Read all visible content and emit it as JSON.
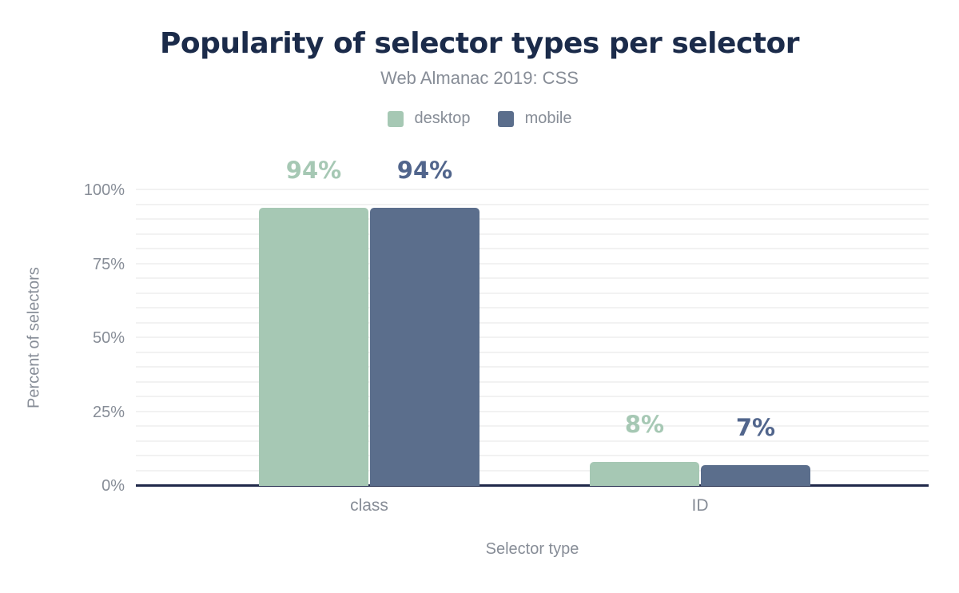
{
  "chart_data": {
    "type": "bar",
    "title": "Popularity of selector types per selector",
    "subtitle": "Web Almanac 2019: CSS",
    "xlabel": "Selector type",
    "ylabel": "Percent of selectors",
    "categories": [
      "class",
      "ID"
    ],
    "series": [
      {
        "name": "desktop",
        "color": "#a6c8b4",
        "label_color": "#a6c8b4",
        "values": [
          94,
          8
        ],
        "value_labels": [
          "94%",
          "8%"
        ]
      },
      {
        "name": "mobile",
        "color": "#5b6e8c",
        "label_color": "#51658c",
        "values": [
          94,
          7
        ],
        "value_labels": [
          "94%",
          "7%"
        ]
      }
    ],
    "ylim": [
      0,
      100
    ],
    "ytick_values": [
      0,
      25,
      50,
      75,
      100
    ],
    "ytick_labels": [
      "0%",
      "25%",
      "50%",
      "75%",
      "100%"
    ],
    "minor_grid_step": 5,
    "grid": "on",
    "legend_position": "top",
    "colors": {
      "title_text": "#1b2b4a",
      "axis_text": "#878d97",
      "gridline": "#f2f2f2",
      "axis_line": "#20294a"
    }
  }
}
